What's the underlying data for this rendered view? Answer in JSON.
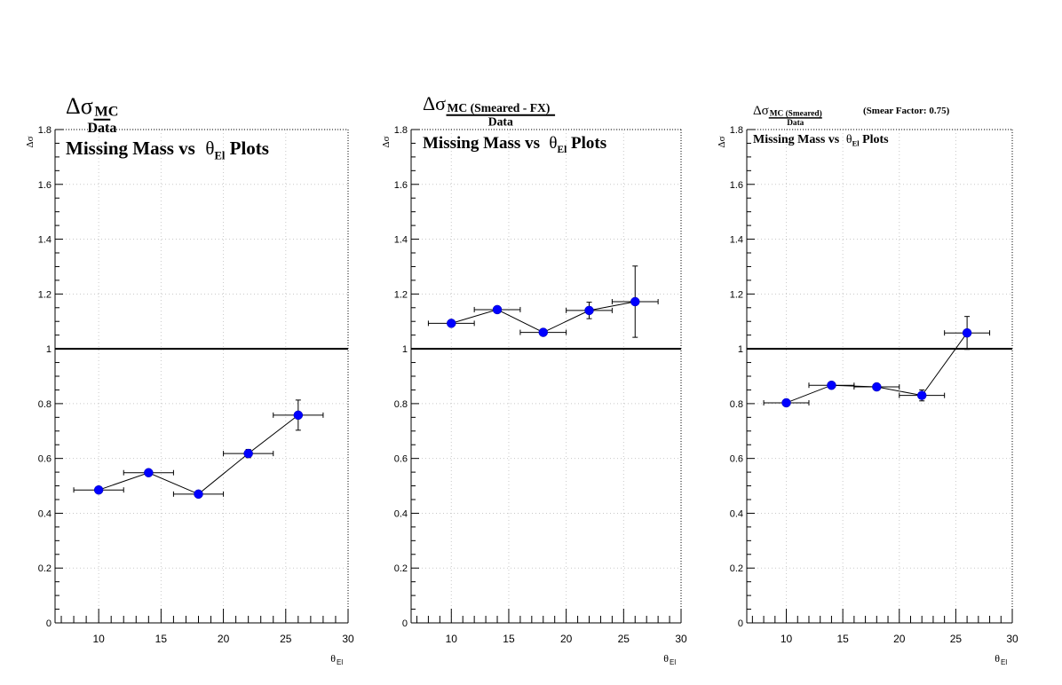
{
  "chart_data": [
    {
      "type": "scatter",
      "title_main": "Δσ",
      "title_sub": "MC",
      "title_den": "Data",
      "subtitle_pre": "Missing Mass vs ",
      "subtitle_theta": "θ",
      "subtitle_theta_sub": "El",
      "subtitle_post": " Plots",
      "note": "",
      "ylabel": "Δσ",
      "xlabel": "θ",
      "xlabel_sub": "El",
      "xlim": [
        6.5,
        30
      ],
      "ylim": [
        0,
        1.8
      ],
      "xticks": [
        10,
        15,
        20,
        25,
        30
      ],
      "yticks": [
        0,
        0.2,
        0.4,
        0.6,
        0.8,
        1,
        1.2,
        1.4,
        1.6,
        1.8
      ],
      "reference_line": 1,
      "grid": true,
      "marker_color": "#0000ff",
      "points": [
        {
          "x": 10,
          "y": 0.485,
          "xerr": 2,
          "yerr": 0.008
        },
        {
          "x": 14,
          "y": 0.548,
          "xerr": 2,
          "yerr": 0.008
        },
        {
          "x": 18,
          "y": 0.47,
          "xerr": 2,
          "yerr": 0.008
        },
        {
          "x": 22,
          "y": 0.618,
          "xerr": 2,
          "yerr": 0.015
        },
        {
          "x": 26,
          "y": 0.758,
          "xerr": 2,
          "yerr": 0.055
        }
      ]
    },
    {
      "type": "scatter",
      "title_main": "Δσ",
      "title_sub": "MC (Smeared - FX)",
      "title_den": "Data",
      "subtitle_pre": "Missing Mass vs ",
      "subtitle_theta": "θ",
      "subtitle_theta_sub": "El",
      "subtitle_post": " Plots",
      "note": "",
      "ylabel": "Δσ",
      "xlabel": "θ",
      "xlabel_sub": "El",
      "xlim": [
        6.5,
        30
      ],
      "ylim": [
        0,
        1.8
      ],
      "xticks": [
        10,
        15,
        20,
        25,
        30
      ],
      "yticks": [
        0,
        0.2,
        0.4,
        0.6,
        0.8,
        1,
        1.2,
        1.4,
        1.6,
        1.8
      ],
      "reference_line": 1,
      "grid": true,
      "marker_color": "#0000ff",
      "points": [
        {
          "x": 10,
          "y": 1.093,
          "xerr": 2,
          "yerr": 0.008
        },
        {
          "x": 14,
          "y": 1.143,
          "xerr": 2,
          "yerr": 0.008
        },
        {
          "x": 18,
          "y": 1.06,
          "xerr": 2,
          "yerr": 0.008
        },
        {
          "x": 22,
          "y": 1.14,
          "xerr": 2,
          "yerr": 0.03
        },
        {
          "x": 26,
          "y": 1.172,
          "xerr": 2,
          "yerr": 0.13
        }
      ]
    },
    {
      "type": "scatter",
      "title_main": "Δσ",
      "title_sub": "MC (Smeared)",
      "title_den": "Data",
      "subtitle_pre": "Missing Mass vs ",
      "subtitle_theta": "θ",
      "subtitle_theta_sub": "El",
      "subtitle_post": " Plots",
      "note": "(Smear Factor: 0.75)",
      "ylabel": "Δσ",
      "xlabel": "θ",
      "xlabel_sub": "El",
      "xlim": [
        6.5,
        30
      ],
      "ylim": [
        0,
        1.8
      ],
      "xticks": [
        10,
        15,
        20,
        25,
        30
      ],
      "yticks": [
        0,
        0.2,
        0.4,
        0.6,
        0.8,
        1,
        1.2,
        1.4,
        1.6,
        1.8
      ],
      "reference_line": 1,
      "grid": true,
      "marker_color": "#0000ff",
      "points": [
        {
          "x": 10,
          "y": 0.803,
          "xerr": 2,
          "yerr": 0.008
        },
        {
          "x": 14,
          "y": 0.867,
          "xerr": 2,
          "yerr": 0.008
        },
        {
          "x": 18,
          "y": 0.861,
          "xerr": 2,
          "yerr": 0.008
        },
        {
          "x": 22,
          "y": 0.83,
          "xerr": 2,
          "yerr": 0.02
        },
        {
          "x": 26,
          "y": 1.058,
          "xerr": 2,
          "yerr": 0.06
        }
      ]
    }
  ]
}
